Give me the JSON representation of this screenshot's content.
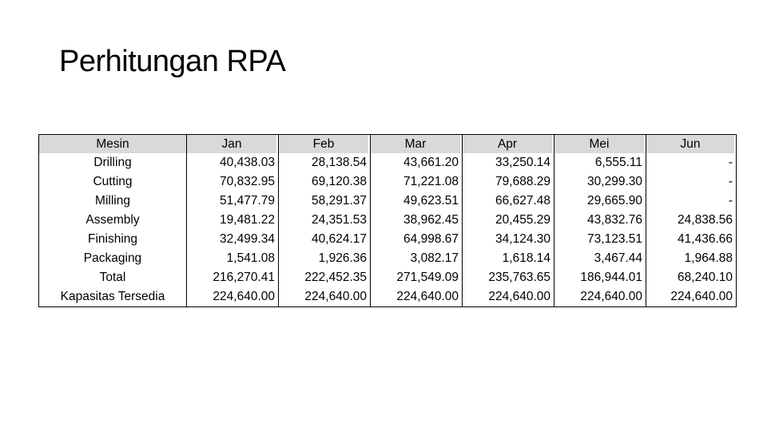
{
  "title": "Perhitungan RPA",
  "table": {
    "row_header": "Mesin",
    "row_labels": [
      "Drilling",
      "Cutting",
      "Milling",
      "Assembly",
      "Finishing",
      "Packaging",
      "Total",
      "Kapasitas Tersedia"
    ],
    "columns": [
      {
        "header": "Jan",
        "values": [
          "40,438.03",
          "70,832.95",
          "51,477.79",
          "19,481.22",
          "32,499.34",
          "1,541.08",
          "216,270.41",
          "224,640.00"
        ]
      },
      {
        "header": "Feb",
        "values": [
          "28,138.54",
          "69,120.38",
          "58,291.37",
          "24,351.53",
          "40,624.17",
          "1,926.36",
          "222,452.35",
          "224,640.00"
        ]
      },
      {
        "header": "Mar",
        "values": [
          "43,661.20",
          "71,221.08",
          "49,623.51",
          "38,962.45",
          "64,998.67",
          "3,082.17",
          "271,549.09",
          "224,640.00"
        ]
      },
      {
        "header": "Apr",
        "values": [
          "33,250.14",
          "79,688.29",
          "66,627.48",
          "20,455.29",
          "34,124.30",
          "1,618.14",
          "235,763.65",
          "224,640.00"
        ]
      },
      {
        "header": "Mei",
        "values": [
          "6,555.11",
          "30,299.30",
          "29,665.90",
          "43,832.76",
          "73,123.51",
          "3,467.44",
          "186,944.01",
          "224,640.00"
        ]
      },
      {
        "header": "Jun",
        "values": [
          "-",
          "-",
          "-",
          "24,838.56",
          "41,436.66",
          "1,964.88",
          "68,240.10",
          "224,640.00"
        ]
      }
    ]
  }
}
